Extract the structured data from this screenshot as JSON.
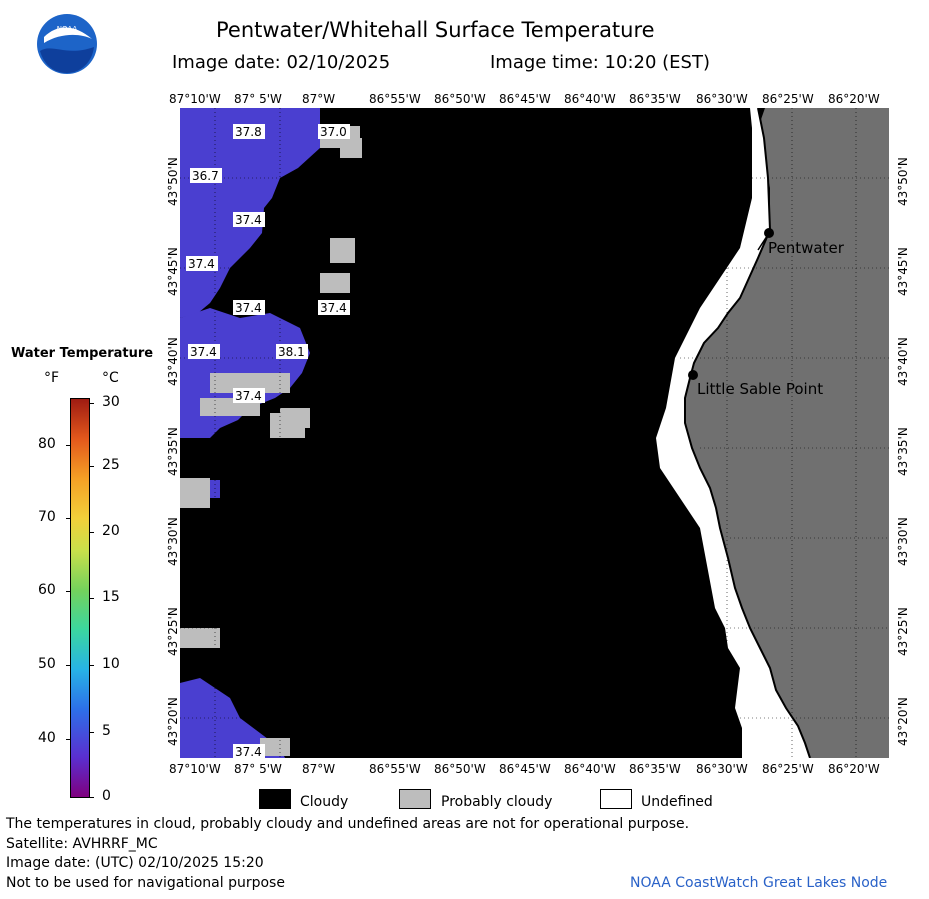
{
  "title": "Pentwater/Whitehall Surface Temperature",
  "image_date": "Image date: 02/10/2025",
  "image_time": "Image time: 10:20 (EST)",
  "logo_text": "NOAA",
  "lon_ticks": [
    "87°10'W",
    "87° 5'W",
    "87°W",
    "86°55'W",
    "86°50'W",
    "86°45'W",
    "86°40'W",
    "86°35'W",
    "86°30'W",
    "86°25'W",
    "86°20'W"
  ],
  "lat_ticks": [
    "43°50'N",
    "43°45'N",
    "43°40'N",
    "43°35'N",
    "43°30'N",
    "43°25'N",
    "43°20'N"
  ],
  "places": [
    {
      "name": "Pentwater"
    },
    {
      "name": "Little Sable Point"
    }
  ],
  "temp_labels": [
    "37.8",
    "37.0",
    "36.7",
    "37.4",
    "37.4",
    "37.4",
    "37.4",
    "37.4",
    "38.1",
    "37.4",
    "37.4"
  ],
  "legend": {
    "title": "Water Temperature",
    "unit_f": "°F",
    "unit_c": "°C",
    "f_ticks": [
      "80",
      "70",
      "60",
      "50",
      "40"
    ],
    "c_ticks": [
      "30",
      "25",
      "20",
      "15",
      "10",
      "5",
      "0"
    ],
    "colors": {
      "cold": "#7f007f",
      "warm": "#9e1b12"
    }
  },
  "key": {
    "cloudy": "Cloudy",
    "probably_cloudy": "Probably cloudy",
    "undefined": "Undefined",
    "colors": {
      "cloudy": "#000000",
      "probably_cloudy": "#bdbdbd",
      "undefined": "#ffffff",
      "land": "#707070",
      "water": "#4a3fd0"
    }
  },
  "footer": {
    "disclaimer": "The temperatures in cloud, probably cloudy and undefined areas are not for operational purpose.",
    "satellite": "Satellite: AVHRRF_MC",
    "utc_date": "Image date: (UTC) 02/10/2025  15:20",
    "nav": "Not to be used for navigational purpose",
    "credit": "NOAA CoastWatch Great Lakes Node"
  }
}
